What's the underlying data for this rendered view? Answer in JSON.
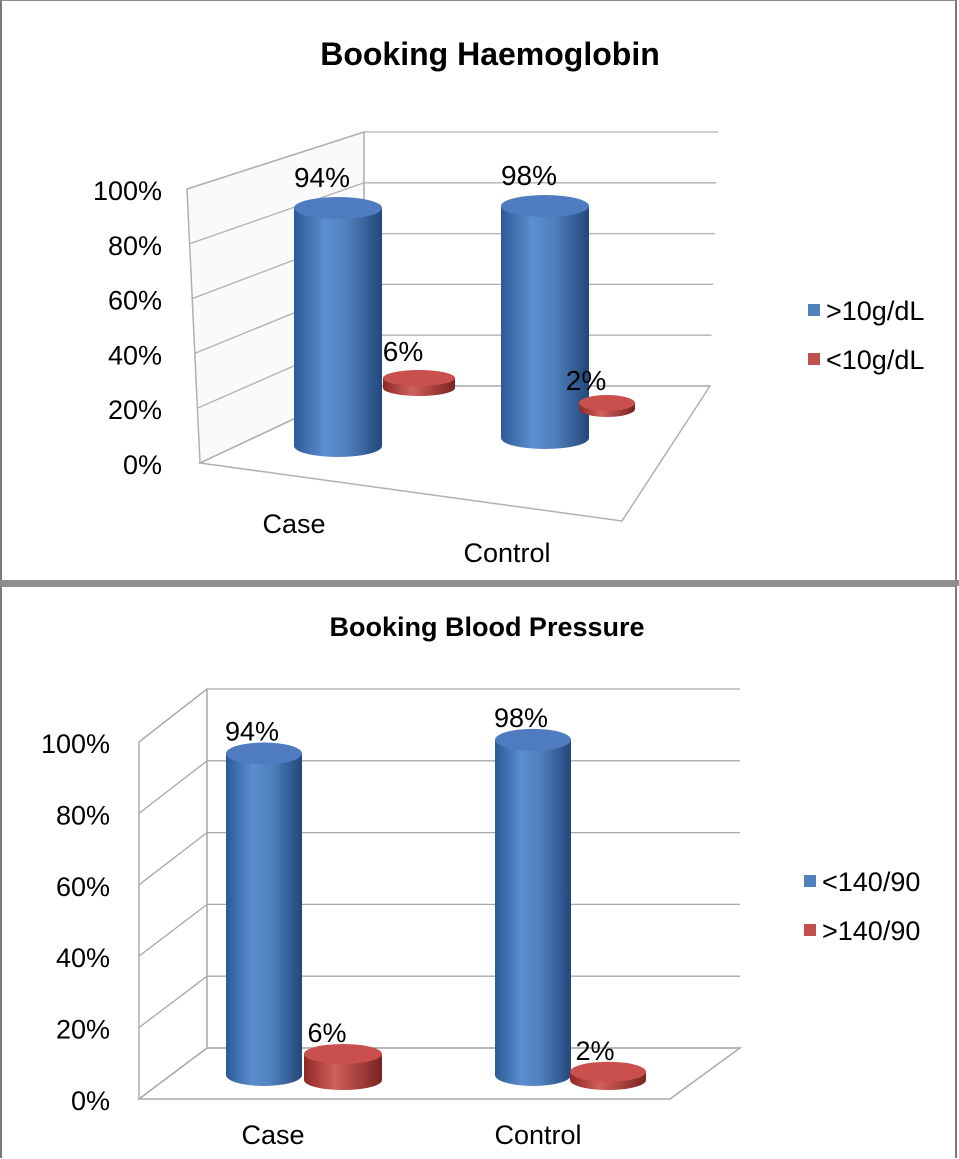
{
  "chart_data": [
    {
      "type": "bar",
      "title": "Booking Haemoglobin",
      "categories": [
        "Case",
        "Control"
      ],
      "series": [
        {
          "name": ">10g/dL",
          "values": [
            94,
            98
          ],
          "labels": [
            "94%",
            "98%"
          ],
          "color": "#4f81bd"
        },
        {
          "name": "<10g/dL",
          "values": [
            6,
            2
          ],
          "labels": [
            "6%",
            "2%"
          ],
          "color": "#c0504d"
        }
      ],
      "ylim": [
        0,
        100
      ],
      "yticks": [
        "0%",
        "20%",
        "40%",
        "60%",
        "80%",
        "100%"
      ],
      "legend": "right",
      "grid": true,
      "style": "3d-cylinder"
    },
    {
      "type": "bar",
      "title": "Booking Blood Pressure",
      "categories": [
        "Case",
        "Control"
      ],
      "series": [
        {
          "name": "<140/90",
          "values": [
            94,
            98
          ],
          "labels": [
            "94%",
            "98%"
          ],
          "color": "#4f81bd"
        },
        {
          "name": ">140/90",
          "values": [
            6,
            2
          ],
          "labels": [
            "6%",
            "2%"
          ],
          "color": "#c0504d"
        }
      ],
      "ylim": [
        0,
        100
      ],
      "yticks": [
        "0%",
        "20%",
        "40%",
        "60%",
        "80%",
        "100%"
      ],
      "legend": "right",
      "grid": true,
      "style": "3d-cylinder"
    }
  ]
}
